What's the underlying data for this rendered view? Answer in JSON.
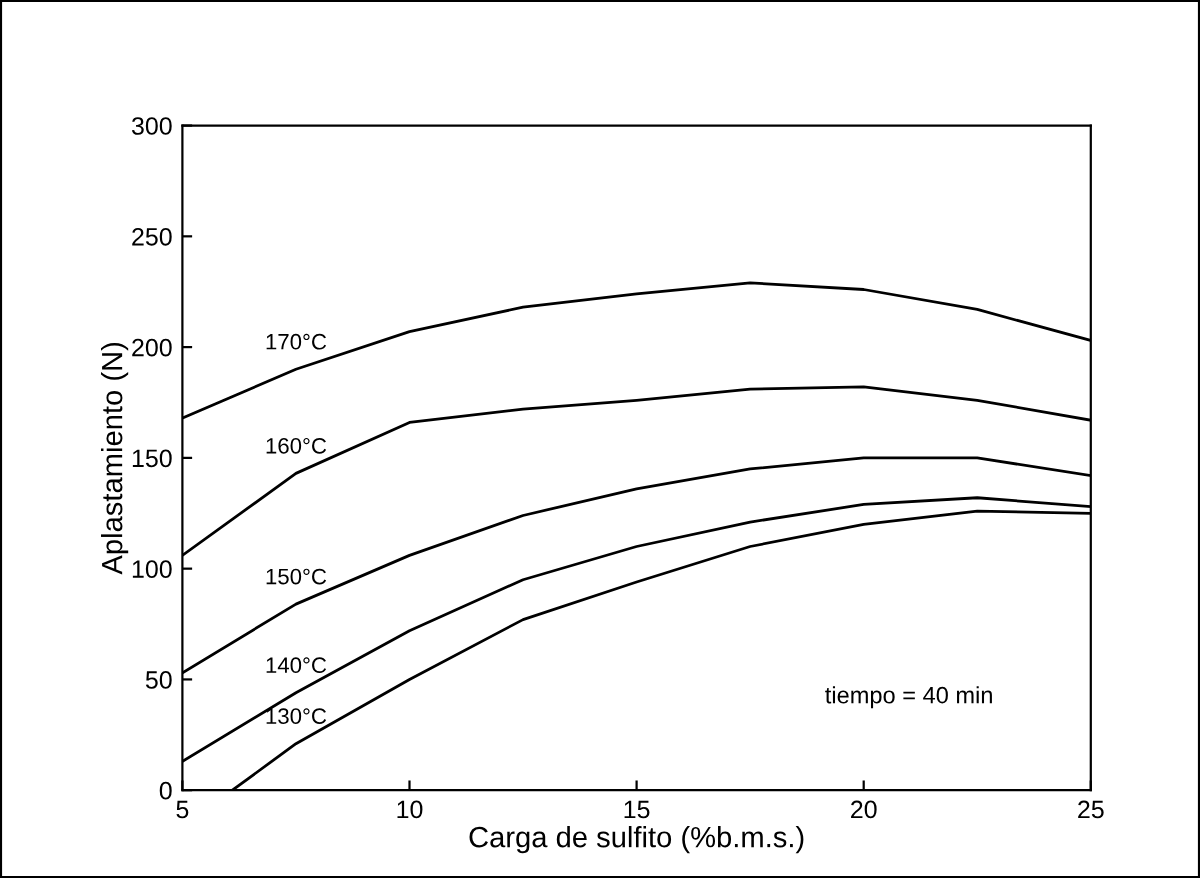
{
  "chart_data": {
    "type": "line",
    "xlabel": "Carga de sulfito (%b.m.s.)",
    "ylabel": "Aplastamiento (N)",
    "xlim": [
      5,
      25
    ],
    "ylim": [
      0,
      300
    ],
    "xticks": [
      5,
      10,
      15,
      20,
      25
    ],
    "yticks": [
      0,
      50,
      100,
      150,
      200,
      250,
      300
    ],
    "grid": false,
    "legend": false,
    "marker": "none",
    "line_style": "solid",
    "annotations": [
      "tiempo = 40 min"
    ],
    "series": [
      {
        "name": "170°C",
        "color": "#000000",
        "x": [
          5,
          7.5,
          10,
          12.5,
          15,
          17.5,
          20,
          22.5,
          25
        ],
        "values": [
          168,
          190,
          207,
          218,
          224,
          229,
          226,
          217,
          203
        ]
      },
      {
        "name": "160°C",
        "color": "#000000",
        "x": [
          5,
          7.5,
          10,
          12.5,
          15,
          17.5,
          20,
          22.5,
          25
        ],
        "values": [
          106,
          143,
          166,
          172,
          176,
          181,
          182,
          176,
          167
        ]
      },
      {
        "name": "150°C",
        "color": "#000000",
        "x": [
          5,
          7.5,
          10,
          12.5,
          15,
          17.5,
          20,
          22.5,
          25
        ],
        "values": [
          53,
          84,
          106,
          124,
          136,
          145,
          150,
          150,
          142
        ]
      },
      {
        "name": "140°C",
        "color": "#000000",
        "x": [
          5,
          7.5,
          10,
          12.5,
          15,
          17.5,
          20,
          22.5,
          25
        ],
        "values": [
          13,
          44,
          72,
          95,
          110,
          121,
          129,
          132,
          128
        ]
      },
      {
        "name": "130°C",
        "color": "#000000",
        "x": [
          6.1,
          7.5,
          10,
          12.5,
          15,
          17.5,
          20,
          22.5,
          25
        ],
        "values": [
          0,
          21,
          50,
          77,
          94,
          110,
          120,
          126,
          125
        ]
      }
    ]
  }
}
